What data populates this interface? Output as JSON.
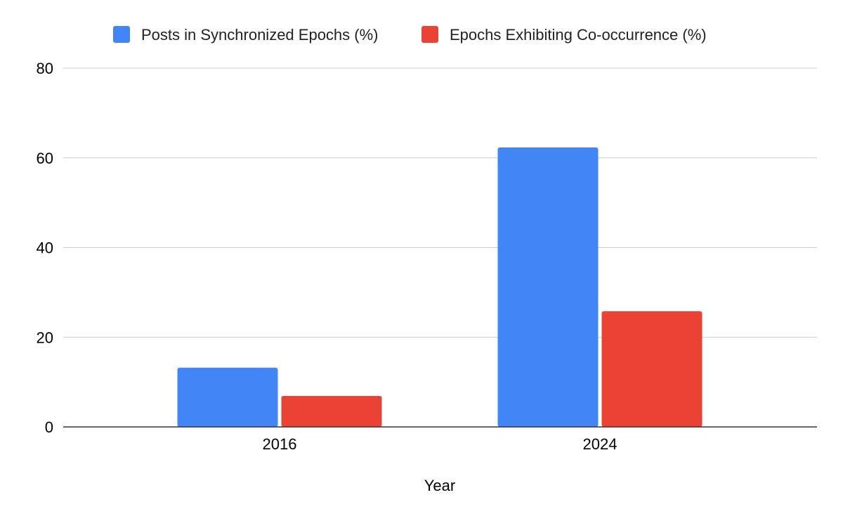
{
  "chart_data": {
    "type": "bar",
    "title": "",
    "xlabel": "Year",
    "ylabel": "",
    "categories": [
      "2016",
      "2024"
    ],
    "series": [
      {
        "name": "Posts in Synchronized Epochs (%)",
        "values": [
          13.2,
          62.3
        ],
        "color": "#4285f4"
      },
      {
        "name": "Epochs Exhibiting Co-occurrence (%)",
        "values": [
          6.9,
          25.8
        ],
        "color": "#ea4335"
      }
    ],
    "ylim": [
      0,
      80
    ],
    "yticks": [
      "0",
      "20",
      "40",
      "60",
      "80"
    ],
    "grid": true,
    "legend_position": "top"
  },
  "colors": {
    "gridline": "#cccccc",
    "baseline": "#333333"
  }
}
